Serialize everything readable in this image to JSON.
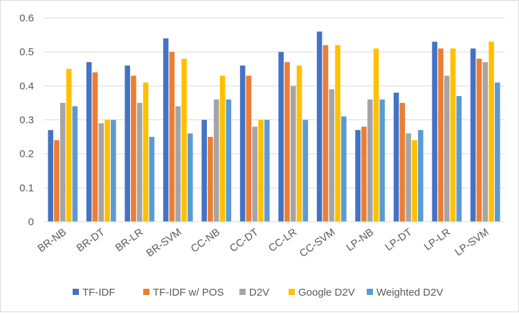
{
  "chart_data": {
    "type": "bar",
    "title": "",
    "xlabel": "",
    "ylabel": "",
    "ylim": [
      0,
      0.6
    ],
    "yticks": [
      0,
      0.1,
      0.2,
      0.3,
      0.4,
      0.5,
      0.6
    ],
    "ytick_labels": [
      "0",
      "0.1",
      "0.2",
      "0.3",
      "0.4",
      "0.5",
      "0.6"
    ],
    "grid": "horizontal",
    "legend_position": "bottom",
    "categories": [
      "BR-NB",
      "BR-DT",
      "BR-LR",
      "BR-SVM",
      "CC-NB",
      "CC-DT",
      "CC-LR",
      "CC-SVM",
      "LP-NB",
      "LP-DT",
      "LP-LR",
      "LP-SVM"
    ],
    "series": [
      {
        "name": "TF-IDF",
        "color": "#4472c4",
        "values": [
          0.27,
          0.47,
          0.46,
          0.54,
          0.3,
          0.46,
          0.5,
          0.56,
          0.27,
          0.38,
          0.53,
          0.51
        ]
      },
      {
        "name": "TF-IDF w/ POS",
        "color": "#ed7d31",
        "values": [
          0.24,
          0.44,
          0.43,
          0.5,
          0.25,
          0.43,
          0.47,
          0.52,
          0.28,
          0.35,
          0.51,
          0.48
        ]
      },
      {
        "name": "D2V",
        "color": "#a5a5a5",
        "values": [
          0.35,
          0.29,
          0.35,
          0.34,
          0.36,
          0.28,
          0.4,
          0.39,
          0.36,
          0.26,
          0.43,
          0.47
        ]
      },
      {
        "name": "Google D2V",
        "color": "#ffc000",
        "values": [
          0.45,
          0.3,
          0.41,
          0.48,
          0.43,
          0.3,
          0.46,
          0.52,
          0.51,
          0.24,
          0.51,
          0.53
        ]
      },
      {
        "name": "Weighted D2V",
        "color": "#5b9bd5",
        "values": [
          0.34,
          0.3,
          0.25,
          0.26,
          0.36,
          0.3,
          0.3,
          0.31,
          0.36,
          0.27,
          0.37,
          0.41
        ]
      }
    ]
  }
}
